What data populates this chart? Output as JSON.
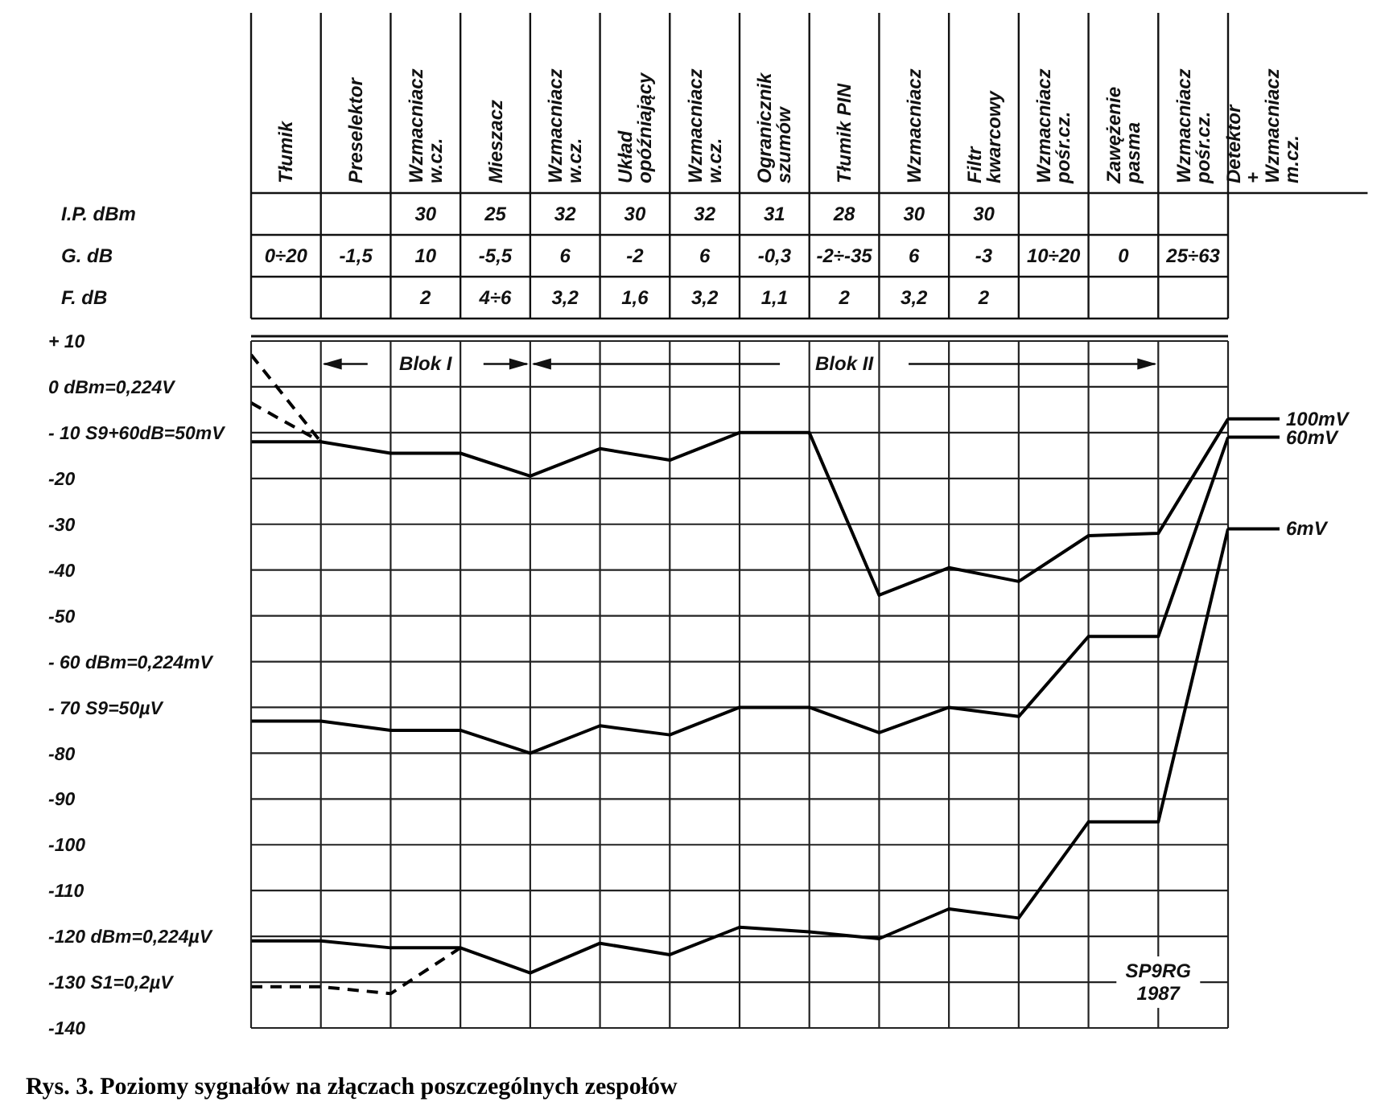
{
  "chart_data": {
    "type": "line",
    "title": "Rys. 3. Poziomy sygnałów na złączach poszczególnych zespołów",
    "categories": [
      null,
      null,
      null,
      null,
      null,
      null,
      null,
      null,
      null,
      null,
      null,
      null,
      null,
      null,
      null
    ],
    "ylim": [
      -140,
      10
    ],
    "yticks": [
      {
        "value": 10,
        "label": "+ 10"
      },
      {
        "value": 0,
        "label": "0 dBm=0,224V"
      },
      {
        "value": -10,
        "label": "- 10 S9+60dB=50mV"
      },
      -20,
      -30,
      -40,
      -50,
      {
        "value": -60,
        "label": "- 60 dBm=0,224mV"
      },
      {
        "value": -70,
        "label": "- 70 S9=50µV"
      },
      -80,
      -90,
      -100,
      -110,
      {
        "value": -120,
        "label": "-120 dBm=0,224µV"
      },
      {
        "value": -130,
        "label": "-130 S1=0,2µV"
      },
      -140
    ],
    "grid": true,
    "legend": "right",
    "series": [
      {
        "name": "100mV",
        "color": "#000000",
        "line_style": "solid",
        "values": [
          -12,
          -12,
          -14.5,
          -14.5,
          -19.5,
          -13.5,
          -16,
          -10,
          -10,
          -45.5,
          -39.5,
          -42.5,
          -32.5,
          -32,
          -7
        ]
      },
      {
        "name": "60mV",
        "color": "#000000",
        "line_style": "solid",
        "values": [
          -73,
          -73,
          -75,
          -75,
          -80,
          -74,
          -76,
          -70,
          -70,
          -75.5,
          -70,
          -72,
          -54.5,
          -54.5,
          -11
        ]
      },
      {
        "name": "6mV",
        "color": "#000000",
        "line_style": "solid",
        "values": [
          -121,
          -121,
          -122.5,
          -122.5,
          -128,
          -121.5,
          -124,
          -118,
          -119,
          -120.5,
          -114,
          -116,
          -95,
          -95,
          -31
        ]
      },
      {
        "color": "#000000",
        "line_style": "dashed",
        "values": [
          -131,
          -131,
          -132.5,
          -122.5,
          null,
          null,
          null,
          null,
          null,
          null,
          null,
          null,
          null,
          null,
          null
        ]
      },
      {
        "color": "#000000",
        "line_style": "dashed",
        "values": [
          7,
          -12,
          null,
          null,
          null,
          null,
          null,
          null,
          null,
          null,
          null,
          null,
          null,
          null,
          null
        ]
      },
      {
        "color": "#000000",
        "line_style": "dashed",
        "values": [
          -3.5,
          -12,
          null,
          null,
          null,
          null,
          null,
          null,
          null,
          null,
          null,
          null,
          null,
          null,
          null
        ]
      }
    ],
    "annotations": [
      "Tłumik",
      "Preselektor",
      "Wzmacniacz\nw.cz.",
      "Mieszacz",
      "Wzmacniacz\nw.cz.",
      "Układ\nopóźniający",
      "Wzmacniacz\nw.cz.",
      "Ogranicznik\nszumów",
      "Tłumik PIN",
      "Wzmacniacz",
      "Filtr\nkwarcowy",
      "Wzmacniacz\npośr.cz.",
      "Zawężenie\npasma",
      "Wzmacniacz\npośr.cz.",
      "Detektor\n+\nWzmacniacz\nm.cz.",
      "I.P. dBm",
      null,
      null,
      "30",
      "25",
      "32",
      "30",
      "32",
      "31",
      "28",
      "30",
      "30",
      null,
      null,
      null,
      "G. dB",
      "0÷20",
      "-1,5",
      "10",
      "-5,5",
      "6",
      "-2",
      "6",
      "-0,3",
      "-2÷-35",
      "6",
      "-3",
      "10÷20",
      "0",
      "25÷63",
      "F. dB",
      null,
      null,
      "2",
      "4÷6",
      "3,2",
      "1,6",
      "3,2",
      "1,1",
      "2",
      "3,2",
      "2",
      null,
      null,
      null,
      "Blok I",
      "Blok II",
      "SP9RG\n1987"
    ]
  }
}
